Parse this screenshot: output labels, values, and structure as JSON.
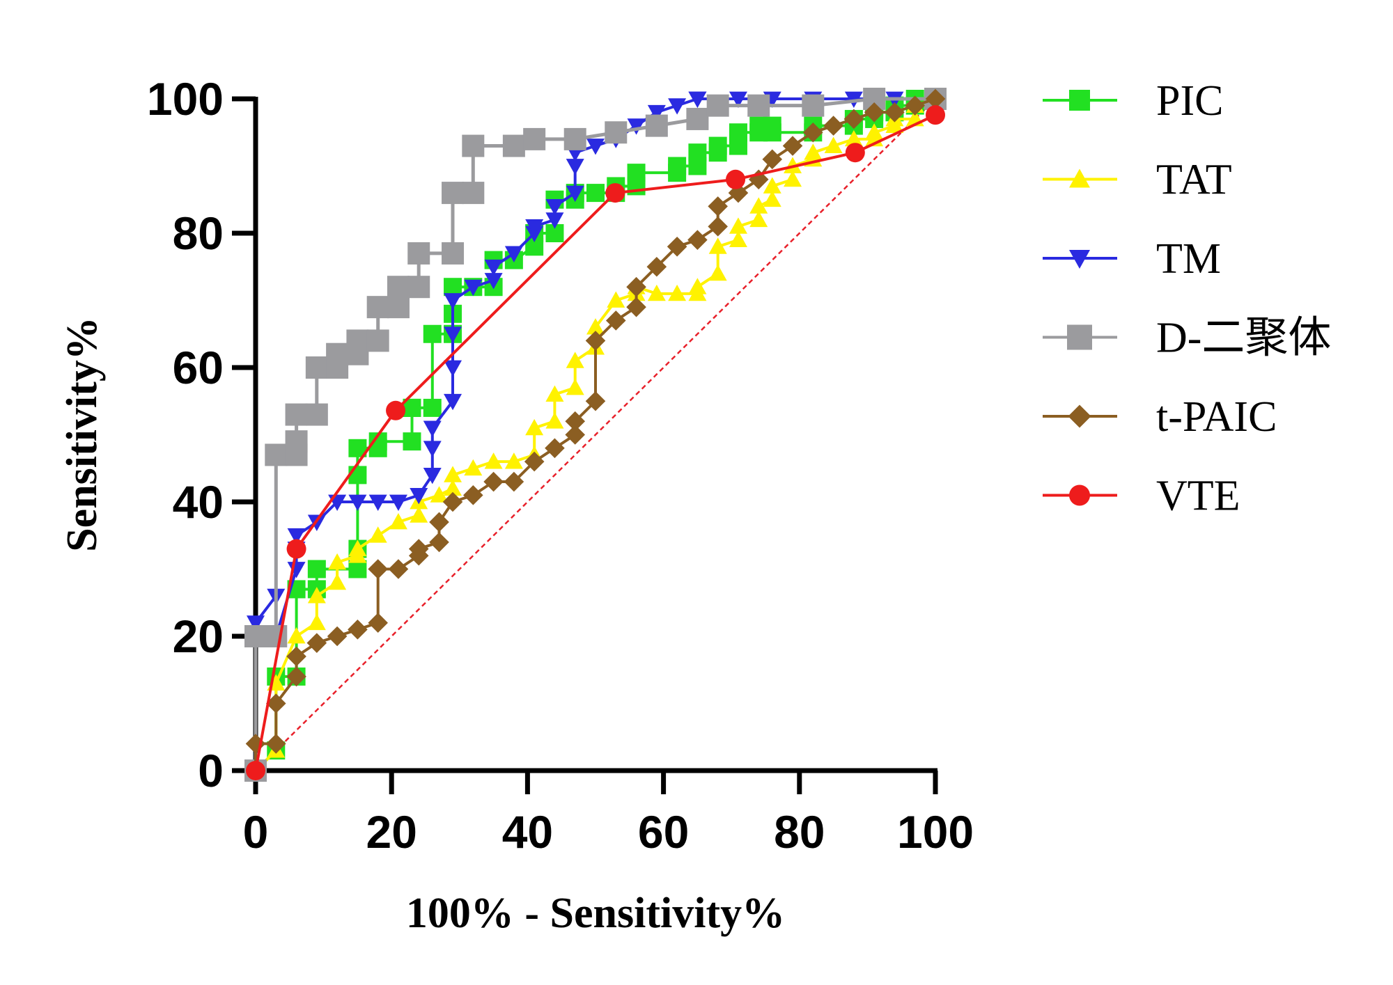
{
  "chart_data": {
    "type": "line",
    "title": "",
    "xlabel": "100% - Sensitivity%",
    "ylabel": "Sensitivity%",
    "xlim": [
      0,
      100
    ],
    "ylim": [
      0,
      100
    ],
    "xticks": [
      "0",
      "20",
      "40",
      "60",
      "80",
      "100"
    ],
    "yticks": [
      "0",
      "20",
      "40",
      "60",
      "80",
      "100"
    ],
    "grid": false,
    "legend_position": "right",
    "reference_line": {
      "name": "diagonal",
      "x": [
        0,
        100
      ],
      "y": [
        0,
        100
      ],
      "color": "#e8202a"
    },
    "series": [
      {
        "name": "PIC",
        "color": "#22e022",
        "marker": "square",
        "x": [
          0,
          3,
          3,
          6,
          6,
          9,
          9,
          15,
          15,
          15,
          15,
          18,
          18,
          23,
          23,
          23,
          26,
          26,
          29,
          29,
          29,
          32,
          35,
          35,
          38,
          41,
          41,
          44,
          44,
          47,
          47,
          50,
          53,
          53,
          56,
          56,
          62,
          62,
          65,
          65,
          68,
          68,
          71,
          71,
          74,
          74,
          76,
          76,
          82,
          82,
          88,
          88,
          91,
          91,
          94,
          94,
          97,
          97,
          100
        ],
        "y": [
          0,
          3,
          14,
          14,
          27,
          27,
          30,
          30,
          33,
          44,
          48,
          48,
          49,
          49,
          54,
          54,
          54,
          65,
          65,
          68,
          72,
          72,
          72,
          76,
          76,
          78,
          80,
          80,
          85,
          85,
          86,
          86,
          86,
          87,
          87,
          89,
          89,
          90,
          90,
          92,
          92,
          93,
          93,
          95,
          95,
          96,
          96,
          95,
          95,
          96,
          96,
          97,
          97,
          98,
          98,
          99,
          99,
          100,
          100
        ]
      },
      {
        "name": "TAT",
        "color": "#fff200",
        "marker": "triangle-up",
        "x": [
          0,
          3,
          3,
          6,
          9,
          9,
          12,
          12,
          15,
          15,
          18,
          21,
          24,
          24,
          27,
          29,
          29,
          32,
          35,
          38,
          41,
          41,
          44,
          44,
          47,
          47,
          50,
          50,
          53,
          56,
          56,
          59,
          62,
          65,
          65,
          68,
          68,
          71,
          71,
          74,
          74,
          76,
          76,
          79,
          79,
          82,
          82,
          85,
          88,
          91,
          91,
          94,
          94,
          97,
          97,
          100
        ],
        "y": [
          0,
          3,
          13,
          20,
          22,
          26,
          28,
          31,
          32,
          33,
          35,
          37,
          38,
          40,
          41,
          42,
          44,
          45,
          46,
          46,
          47,
          51,
          52,
          56,
          57,
          61,
          63,
          66,
          70,
          71,
          72,
          71,
          71,
          71,
          72,
          74,
          78,
          79,
          81,
          82,
          84,
          85,
          87,
          88,
          90,
          91,
          92,
          93,
          94,
          94,
          95,
          96,
          97,
          97,
          99,
          100
        ]
      },
      {
        "name": "TM",
        "color": "#2a2ae0",
        "marker": "triangle-down",
        "x": [
          0,
          0,
          3,
          3,
          6,
          6,
          6,
          9,
          12,
          15,
          18,
          21,
          24,
          26,
          26,
          26,
          29,
          29,
          29,
          29,
          32,
          35,
          35,
          38,
          41,
          41,
          44,
          44,
          47,
          47,
          47,
          50,
          53,
          56,
          59,
          62,
          65,
          65,
          71,
          76,
          82,
          88,
          94,
          100
        ],
        "y": [
          0,
          22,
          26,
          20,
          30,
          33,
          35,
          37,
          40,
          40,
          40,
          40,
          41,
          44,
          48,
          51,
          55,
          60,
          65,
          70,
          72,
          73,
          75,
          77,
          80,
          81,
          82,
          84,
          86,
          90,
          92,
          93,
          94,
          96,
          98,
          99,
          100,
          100,
          100,
          100,
          100,
          100,
          100,
          100
        ]
      },
      {
        "name": "D-二聚体",
        "color": "#9b9b9e",
        "marker": "square",
        "x": [
          0,
          0,
          3,
          3,
          6,
          6,
          6,
          9,
          9,
          12,
          12,
          15,
          15,
          18,
          18,
          21,
          21,
          24,
          24,
          29,
          29,
          32,
          32,
          38,
          41,
          47,
          53,
          59,
          65,
          68,
          74,
          82,
          91,
          100
        ],
        "y": [
          0,
          20,
          20,
          47,
          47,
          49,
          53,
          53,
          60,
          60,
          62,
          62,
          64,
          64,
          69,
          69,
          72,
          72,
          77,
          77,
          86,
          86,
          93,
          93,
          94,
          94,
          95,
          96,
          97,
          99,
          99,
          99,
          100,
          100
        ]
      },
      {
        "name": "t-PAIC",
        "color": "#8b5e22",
        "marker": "diamond",
        "x": [
          0,
          0,
          3,
          3,
          6,
          6,
          9,
          12,
          15,
          18,
          18,
          21,
          24,
          24,
          27,
          27,
          29,
          32,
          35,
          38,
          41,
          44,
          47,
          47,
          50,
          50,
          53,
          56,
          56,
          59,
          62,
          65,
          68,
          68,
          71,
          74,
          76,
          79,
          82,
          85,
          88,
          91,
          94,
          97,
          100
        ],
        "y": [
          0,
          4,
          4,
          10,
          14,
          17,
          19,
          20,
          21,
          22,
          30,
          30,
          32,
          33,
          34,
          37,
          40,
          41,
          43,
          43,
          46,
          48,
          50,
          52,
          55,
          64,
          67,
          69,
          72,
          75,
          78,
          79,
          81,
          84,
          86,
          88,
          91,
          93,
          95,
          96,
          97,
          98,
          98,
          99,
          100
        ]
      },
      {
        "name": "VTE",
        "color": "#ee1c1c",
        "marker": "circle",
        "x": [
          0,
          6,
          20.6,
          52.9,
          70.6,
          88.2,
          100
        ],
        "y": [
          0,
          33,
          53.6,
          86,
          88,
          92,
          97.6
        ]
      }
    ]
  }
}
